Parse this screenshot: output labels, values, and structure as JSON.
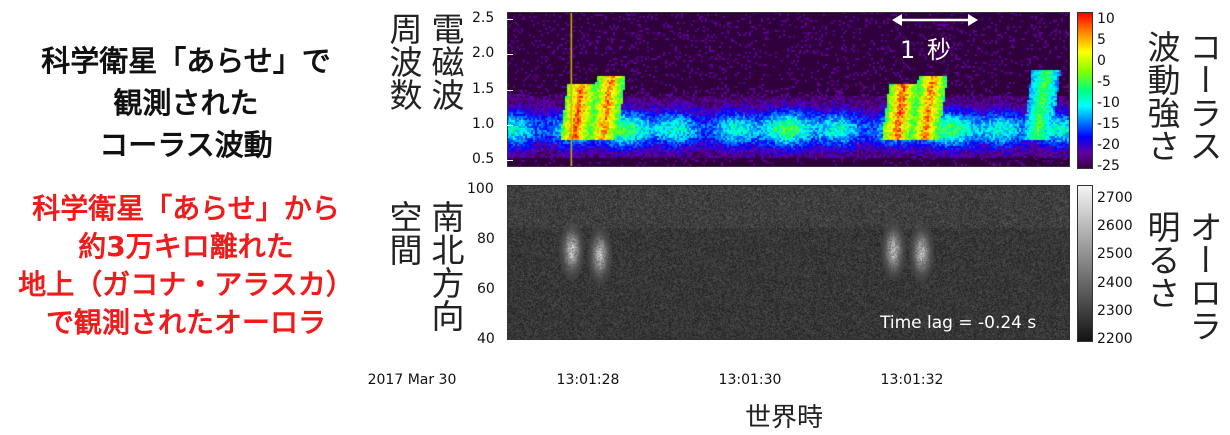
{
  "left_text": {
    "black_lines": [
      "科学衛星「あらせ」で",
      "観測された",
      "コーラス波動"
    ],
    "red_lines": [
      "科学衛星「あらせ」から",
      "約3万キロ離れた",
      "地上（ガコナ・アラスカ）",
      "で観測されたオーロラ"
    ]
  },
  "top_panel": {
    "ylabel_lines": [
      "電磁波",
      "周波数"
    ],
    "annotation": "1 秒",
    "colorbar_label_lines": [
      "コーラス",
      "波動強さ"
    ],
    "background_color": "#30003c"
  },
  "bottom_panel": {
    "ylabel_lines": [
      "南北方向",
      "空間"
    ],
    "annotation": "Time lag = -0.24 s",
    "colorbar_label_lines": [
      "オーロラ",
      "明るさ"
    ],
    "background_color": "#161616"
  },
  "x_axis": {
    "date_label": "2017 Mar 30",
    "tick_labels": [
      "13:01:28",
      "13:01:30",
      "13:01:32"
    ],
    "title": "世界時"
  },
  "chart_data": [
    {
      "type": "heatmap",
      "name": "chorus",
      "x_range": [
        "13:01:27.1",
        "13:01:34.1"
      ],
      "xtick_labels": [
        "13:01:28",
        "13:01:30",
        "13:01:32"
      ],
      "yticks": [
        "0.5",
        "1.0",
        "1.5",
        "2.0",
        "2.5"
      ],
      "ylim": [
        0.4,
        2.6
      ],
      "colorbar_ticks": [
        "10",
        "5",
        "0",
        "-5",
        "-10",
        "-15",
        "-20",
        "-25"
      ],
      "colorbar_range": [
        -25,
        12
      ],
      "colormap": "rainbow",
      "marker_line_time": "13:01:27.9",
      "marker_line_color": "#c8b400",
      "bursts": [
        {
          "t": 27.95,
          "f_low": 0.8,
          "f_high": 1.6,
          "peak": 10
        },
        {
          "t": 28.3,
          "f_low": 0.8,
          "f_high": 1.7,
          "peak": 9
        },
        {
          "t": 31.95,
          "f_low": 0.8,
          "f_high": 1.6,
          "peak": 10
        },
        {
          "t": 32.3,
          "f_low": 0.8,
          "f_high": 1.7,
          "peak": 9
        },
        {
          "t": 33.7,
          "f_low": 0.8,
          "f_high": 1.8,
          "peak": 0
        }
      ]
    },
    {
      "type": "heatmap",
      "name": "aurora",
      "x_range": [
        "13:01:27.1",
        "13:01:34.1"
      ],
      "xtick_labels": [
        "13:01:28",
        "13:01:30",
        "13:01:32"
      ],
      "yticks": [
        "40",
        "60",
        "80",
        "100"
      ],
      "ylim": [
        40,
        102
      ],
      "colorbar_ticks": [
        "2700",
        "2600",
        "2500",
        "2400",
        "2300",
        "2200"
      ],
      "colorbar_range": [
        2200,
        2750
      ],
      "colormap": "gray",
      "patches": [
        {
          "t": 27.9,
          "y": 76,
          "peak": 2650
        },
        {
          "t": 28.25,
          "y": 74,
          "peak": 2630
        },
        {
          "t": 31.9,
          "y": 76,
          "peak": 2640
        },
        {
          "t": 32.25,
          "y": 75,
          "peak": 2630
        }
      ]
    }
  ]
}
